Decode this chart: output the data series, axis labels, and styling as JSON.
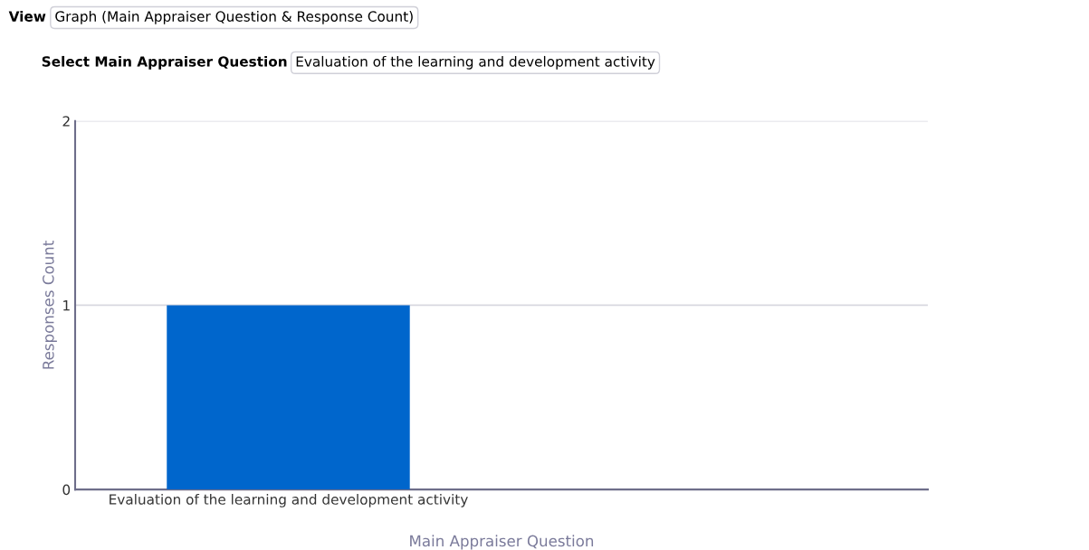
{
  "chart_data": {
    "type": "bar",
    "xlabel": "Main Appraiser Question",
    "ylabel": "Responses Count",
    "categories": [
      "Evaluation of the learning and development activity",
      null
    ],
    "values": [
      1,
      null
    ],
    "color": "#0066cc",
    "ylim": [
      0,
      2
    ],
    "yticks": [
      0,
      1,
      2
    ],
    "grid": "y",
    "legend": false,
    "annotations": [
      "View",
      "Graph (Main Appraiser Question & Response Count)",
      "Select Main Appraiser Question",
      "Evaluation of the learning and development activity"
    ]
  }
}
